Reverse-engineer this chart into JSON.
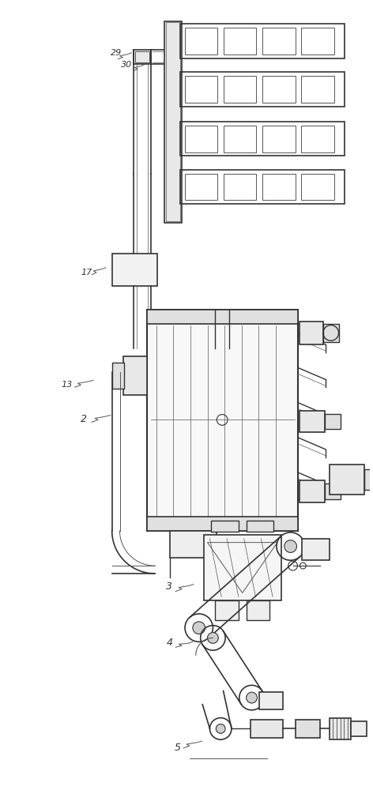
{
  "bg": "#ffffff",
  "lc": "#555555",
  "dc": "#333333",
  "gc": "#888888",
  "figsize": [
    4.72,
    10.0
  ],
  "dpi": 100
}
